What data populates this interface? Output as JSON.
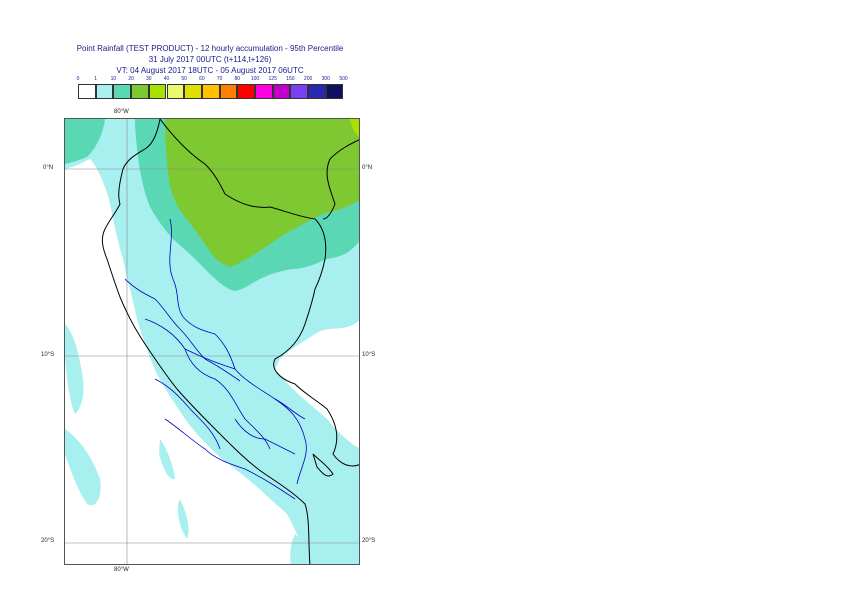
{
  "title": {
    "line1": "Point Rainfall (TEST PRODUCT) - 12 hourly accumulation - 95th Percentile",
    "line2": "31 July 2017 00UTC (t+114,t+126)",
    "line3": "VT: 04 August 2017 18UTC - 05 August 2017 06UTC"
  },
  "legend": {
    "ticks": [
      "0",
      "1",
      "10",
      "20",
      "30",
      "40",
      "50",
      "60",
      "70",
      "80",
      "100",
      "125",
      "150",
      "200",
      "300",
      "500"
    ],
    "colors": [
      "#ffffff",
      "#a8f0f0",
      "#5ad8b4",
      "#7ec832",
      "#a8e000",
      "#e8f870",
      "#e0e000",
      "#ffc000",
      "#ff8000",
      "#ff0000",
      "#ff00e0",
      "#c000c8",
      "#7840f0",
      "#2828b0",
      "#101060"
    ]
  },
  "axes": {
    "lon_top": "80°W",
    "lon_bottom": "80°W",
    "lat_left": [
      "0°N",
      "10°S",
      "20°S"
    ],
    "lat_right": [
      "0°N",
      "10°S",
      "20°S"
    ]
  },
  "map": {
    "region": "Peru",
    "colors": {
      "light": "#a8f0f0",
      "medium": "#5ad8b4",
      "green": "#7ec832",
      "coast": "#000000",
      "admin": "#0000c0",
      "grid": "#888888"
    }
  }
}
